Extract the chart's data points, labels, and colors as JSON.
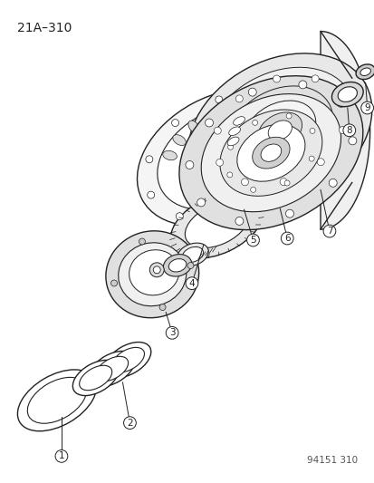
{
  "title": "21A–310",
  "watermark": "94151 310",
  "bg_color": "#ffffff",
  "line_color": "#222222",
  "title_fontsize": 10,
  "watermark_fontsize": 7.5,
  "fig_w": 4.14,
  "fig_h": 5.33,
  "dpi": 100
}
